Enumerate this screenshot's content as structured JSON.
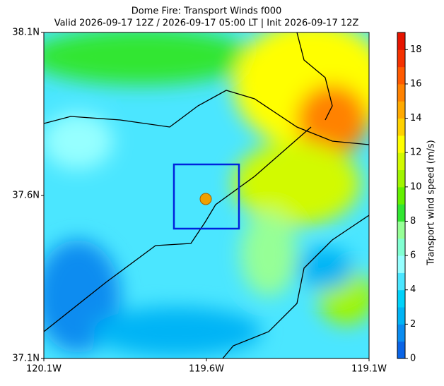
{
  "chart_data": {
    "type": "filled-contour-map",
    "title": "Dome Fire: Transport Winds f000",
    "subtitle": "Valid 2026-09-17 12Z / 2026-09-17 05:00 LT | Init 2026-09-17 12Z",
    "xlim": [
      -120.1,
      -119.1
    ],
    "xticks": [
      {
        "value": -120.1,
        "label": "120.1W"
      },
      {
        "value": -119.6,
        "label": "119.6W"
      },
      {
        "value": -119.1,
        "label": "119.1W"
      }
    ],
    "ylim": [
      37.1,
      38.1
    ],
    "yticks": [
      {
        "value": 37.1,
        "label": "37.1N"
      },
      {
        "value": 37.6,
        "label": "37.6N"
      },
      {
        "value": 38.1,
        "label": "38.1N"
      }
    ],
    "colorbar": {
      "label": "Transport wind speed (m/s)",
      "lim": [
        0,
        19
      ],
      "ticks": [
        0,
        2,
        4,
        6,
        8,
        10,
        12,
        14,
        16,
        18
      ],
      "colors": [
        "#0a64e6",
        "#0a8cf0",
        "#00b4f5",
        "#00d2fa",
        "#4be6ff",
        "#96ffff",
        "#82ffd2",
        "#96ff96",
        "#32e632",
        "#64f000",
        "#a0f500",
        "#d2fa00",
        "#ffff00",
        "#ffd200",
        "#ffaa00",
        "#ff8200",
        "#ff5a00",
        "#f53200",
        "#e61400"
      ]
    }
  }
}
